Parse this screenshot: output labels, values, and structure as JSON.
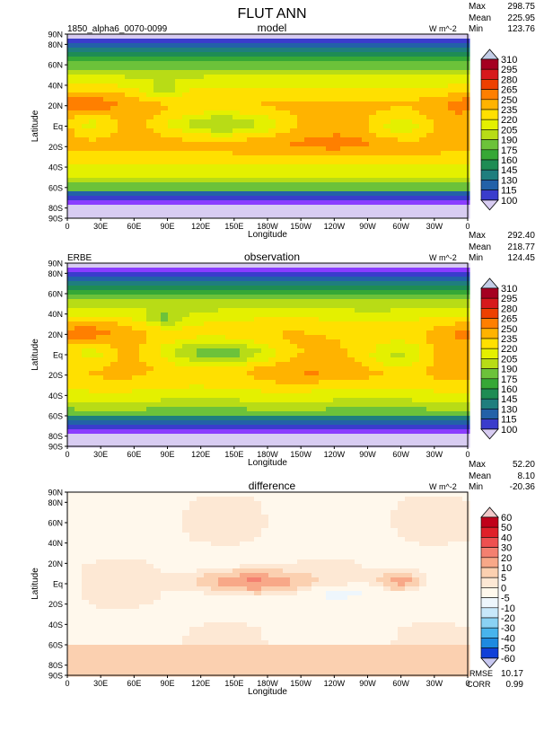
{
  "figure": {
    "title": "FLUT ANN"
  },
  "axes": {
    "xlabel": "Longitude",
    "ylabel": "Latitude",
    "xticks": [
      "0",
      "30E",
      "60E",
      "90E",
      "120E",
      "150E",
      "180W",
      "150W",
      "120W",
      "90W",
      "60W",
      "30W",
      "0"
    ],
    "yticks": [
      {
        "label": "90N",
        "lat": 90
      },
      {
        "label": "80N",
        "lat": 80
      },
      {
        "label": "60N",
        "lat": 60
      },
      {
        "label": "40N",
        "lat": 40
      },
      {
        "label": "20N",
        "lat": 20
      },
      {
        "label": "Eq",
        "lat": 0
      },
      {
        "label": "20S",
        "lat": -20
      },
      {
        "label": "40S",
        "lat": -40
      },
      {
        "label": "60S",
        "lat": -60
      },
      {
        "label": "80S",
        "lat": -80
      },
      {
        "label": "90S",
        "lat": -90
      }
    ]
  },
  "chart_data": [
    {
      "type": "heatmap",
      "panel_title": "model",
      "case_label": "1850_alpha6_0070-0099",
      "units": "W m^-2",
      "stats": {
        "max": "298.75",
        "mean": "225.95",
        "min": "123.76"
      },
      "colorbar": {
        "levels": [
          "310",
          "295",
          "280",
          "265",
          "250",
          "235",
          "220",
          "205",
          "190",
          "175",
          "160",
          "145",
          "130",
          "115",
          "100"
        ],
        "colors": [
          "#c3cde6",
          "#a50021",
          "#d7191c",
          "#ee4000",
          "#ff7f00",
          "#ffb300",
          "#ffe000",
          "#e4f000",
          "#b8dc16",
          "#6cc23a",
          "#36a836",
          "#1e8c54",
          "#1f7e7e",
          "#2361a8",
          "#3a3ccc",
          "#8a3cff",
          "#d8ccf2"
        ]
      }
    },
    {
      "type": "heatmap",
      "panel_title": "observation",
      "case_label": "ERBE",
      "units": "W m^-2",
      "stats": {
        "max": "292.40",
        "mean": "218.77",
        "min": "124.45"
      },
      "colorbar": {
        "levels": [
          "310",
          "295",
          "280",
          "265",
          "250",
          "235",
          "220",
          "205",
          "190",
          "175",
          "160",
          "145",
          "130",
          "115",
          "100"
        ],
        "colors": [
          "#c3cde6",
          "#a50021",
          "#d7191c",
          "#ee4000",
          "#ff7f00",
          "#ffb300",
          "#ffe000",
          "#e4f000",
          "#b8dc16",
          "#6cc23a",
          "#36a836",
          "#1e8c54",
          "#1f7e7e",
          "#2361a8",
          "#3a3ccc",
          "#8a3cff",
          "#d8ccf2"
        ]
      }
    },
    {
      "type": "heatmap",
      "panel_title": "difference",
      "case_label": "",
      "units": "W m^-2",
      "stats": {
        "max": "52.20",
        "mean": "8.10",
        "min": "-20.36"
      },
      "rmse": "10.17",
      "corr": "0.99",
      "colorbar": {
        "levels": [
          "60",
          "50",
          "40",
          "30",
          "20",
          "10",
          "5",
          "0",
          "-5",
          "-10",
          "-20",
          "-30",
          "-40",
          "-50",
          "-60"
        ],
        "colors": [
          "#f0c8c8",
          "#c0001a",
          "#e0202a",
          "#ee5050",
          "#f48070",
          "#f8a888",
          "#fbd0b0",
          "#fde8d4",
          "#fff8ec",
          "#eef6fc",
          "#c8e8fa",
          "#8ad2f4",
          "#48b4ec",
          "#1e8ae0",
          "#1040d8",
          "#1010c8",
          "#c8c8f0"
        ]
      }
    }
  ]
}
